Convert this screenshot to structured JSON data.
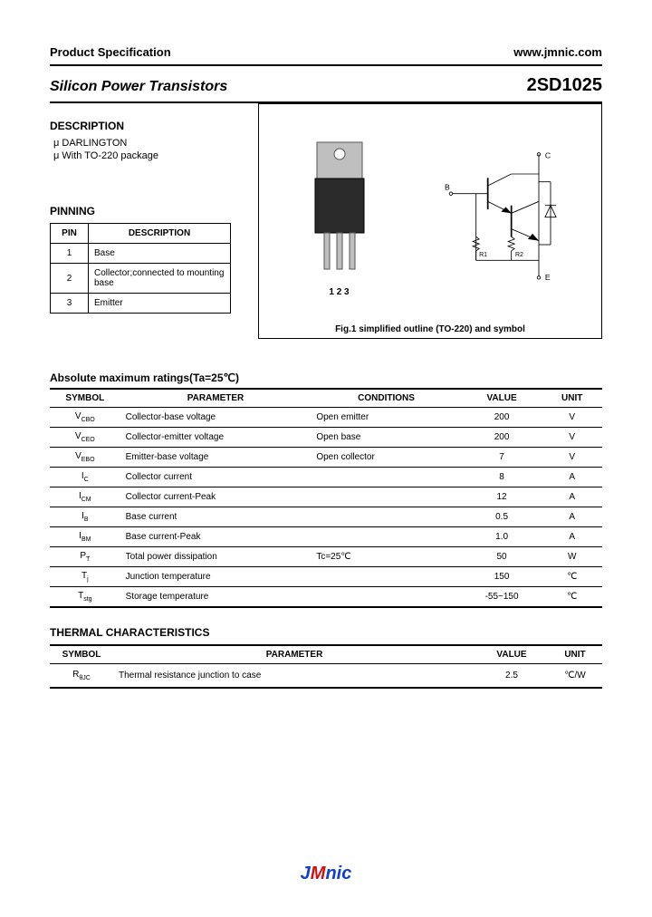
{
  "header": {
    "left": "Product Specification",
    "right": "www.jmnic.com"
  },
  "title": {
    "left": "Silicon Power Transistors",
    "right": "2SD1025"
  },
  "description": {
    "heading": "DESCRIPTION",
    "items": [
      "DARLINGTON",
      "With TO-220 package"
    ]
  },
  "pinning": {
    "heading": "PINNING",
    "cols": [
      "PIN",
      "DESCRIPTION"
    ],
    "rows": [
      [
        "1",
        "Base"
      ],
      [
        "2",
        "Collector;connected to mounting base"
      ],
      [
        "3",
        "Emitter"
      ]
    ]
  },
  "figure": {
    "caption": "Fig.1 simplified outline (TO-220) and symbol",
    "pin_labels": "1  2  3",
    "terminals": {
      "b": "B",
      "c": "C",
      "e": "E",
      "r1": "R1",
      "r2": "R2"
    }
  },
  "ratings": {
    "heading": "Absolute maximum ratings(Ta=25℃)",
    "cols": [
      "SYMBOL",
      "PARAMETER",
      "CONDITIONS",
      "VALUE",
      "UNIT"
    ],
    "rows": [
      {
        "sym": "V",
        "sub": "CBO",
        "param": "Collector-base voltage",
        "cond": "Open emitter",
        "val": "200",
        "unit": "V"
      },
      {
        "sym": "V",
        "sub": "CEO",
        "param": "Collector-emitter voltage",
        "cond": "Open base",
        "val": "200",
        "unit": "V"
      },
      {
        "sym": "V",
        "sub": "EBO",
        "param": "Emitter-base voltage",
        "cond": "Open collector",
        "val": "7",
        "unit": "V"
      },
      {
        "sym": "I",
        "sub": "C",
        "param": "Collector current",
        "cond": "",
        "val": "8",
        "unit": "A"
      },
      {
        "sym": "I",
        "sub": "CM",
        "param": "Collector current-Peak",
        "cond": "",
        "val": "12",
        "unit": "A"
      },
      {
        "sym": "I",
        "sub": "B",
        "param": "Base current",
        "cond": "",
        "val": "0.5",
        "unit": "A"
      },
      {
        "sym": "I",
        "sub": "BM",
        "param": "Base current-Peak",
        "cond": "",
        "val": "1.0",
        "unit": "A"
      },
      {
        "sym": "P",
        "sub": "T",
        "param": "Total power dissipation",
        "cond": "Tc=25℃",
        "val": "50",
        "unit": "W"
      },
      {
        "sym": "T",
        "sub": "j",
        "param": "Junction temperature",
        "cond": "",
        "val": "150",
        "unit": "℃"
      },
      {
        "sym": "T",
        "sub": "stg",
        "param": "Storage temperature",
        "cond": "",
        "val": "-55~150",
        "unit": "℃"
      }
    ]
  },
  "thermal": {
    "heading": "THERMAL CHARACTERISTICS",
    "cols": [
      "SYMBOL",
      "PARAMETER",
      "VALUE",
      "UNIT"
    ],
    "rows": [
      {
        "sym": "R",
        "sub": "θJC",
        "param": "Thermal resistance junction to case",
        "val": "2.5",
        "unit": "℃/W"
      }
    ]
  },
  "footer": {
    "j": "J",
    "m": "M",
    "nic": "nic"
  },
  "colors": {
    "text": "#000000",
    "logo_blue": "#1040d0",
    "logo_red": "#d01010",
    "pkg_body": "#2a2a2a",
    "pkg_tab": "#bfbfbf"
  }
}
